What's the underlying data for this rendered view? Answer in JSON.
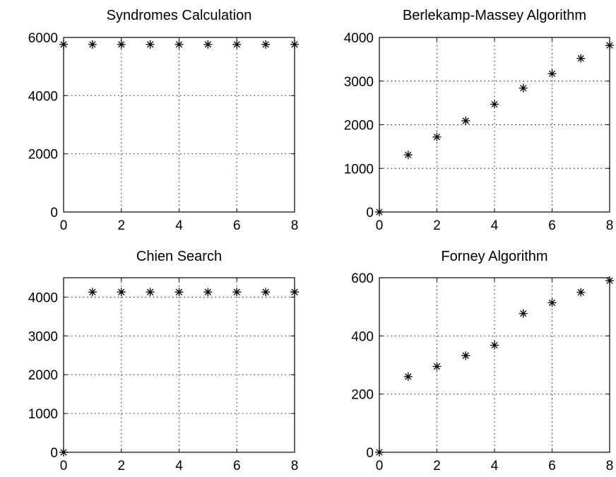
{
  "chart_data": [
    {
      "type": "scatter",
      "title": "Syndromes Calculation",
      "xlim": [
        0,
        8
      ],
      "ylim": [
        0,
        6000
      ],
      "x_ticks": [
        "0",
        "2",
        "4",
        "6",
        "8"
      ],
      "y_ticks": [
        "0",
        "2000",
        "4000",
        "6000"
      ],
      "grid": true,
      "marker": "asterisk",
      "x": [
        0,
        1,
        2,
        3,
        4,
        5,
        6,
        7,
        8
      ],
      "y": [
        5760,
        5760,
        5760,
        5760,
        5760,
        5760,
        5760,
        5760,
        5760
      ]
    },
    {
      "type": "scatter",
      "title": "Berlekamp-Massey Algorithm",
      "xlim": [
        0,
        8
      ],
      "ylim": [
        0,
        4000
      ],
      "x_ticks": [
        "0",
        "2",
        "4",
        "6",
        "8"
      ],
      "y_ticks": [
        "0",
        "1000",
        "2000",
        "3000",
        "4000"
      ],
      "grid": true,
      "marker": "asterisk",
      "x": [
        0,
        1,
        2,
        3,
        4,
        5,
        6,
        7,
        8
      ],
      "y": [
        0,
        1310,
        1720,
        2090,
        2470,
        2840,
        3170,
        3520,
        3820
      ]
    },
    {
      "type": "scatter",
      "title": "Chien Search",
      "xlim": [
        0,
        8
      ],
      "ylim": [
        0,
        4500
      ],
      "x_ticks": [
        "0",
        "2",
        "4",
        "6",
        "8"
      ],
      "y_ticks": [
        "0",
        "1000",
        "2000",
        "3000",
        "4000"
      ],
      "grid": true,
      "marker": "asterisk",
      "x": [
        0,
        1,
        2,
        3,
        4,
        5,
        6,
        7,
        8
      ],
      "y": [
        0,
        4130,
        4130,
        4130,
        4130,
        4130,
        4130,
        4130,
        4130
      ]
    },
    {
      "type": "scatter",
      "title": "Forney Algorithm",
      "xlim": [
        0,
        8
      ],
      "ylim": [
        0,
        600
      ],
      "x_ticks": [
        "0",
        "2",
        "4",
        "6",
        "8"
      ],
      "y_ticks": [
        "0",
        "200",
        "400",
        "600"
      ],
      "grid": true,
      "marker": "asterisk",
      "x": [
        0,
        1,
        2,
        3,
        4,
        5,
        6,
        7,
        8
      ],
      "y": [
        0,
        260,
        295,
        332,
        368,
        477,
        514,
        550,
        590
      ]
    }
  ]
}
